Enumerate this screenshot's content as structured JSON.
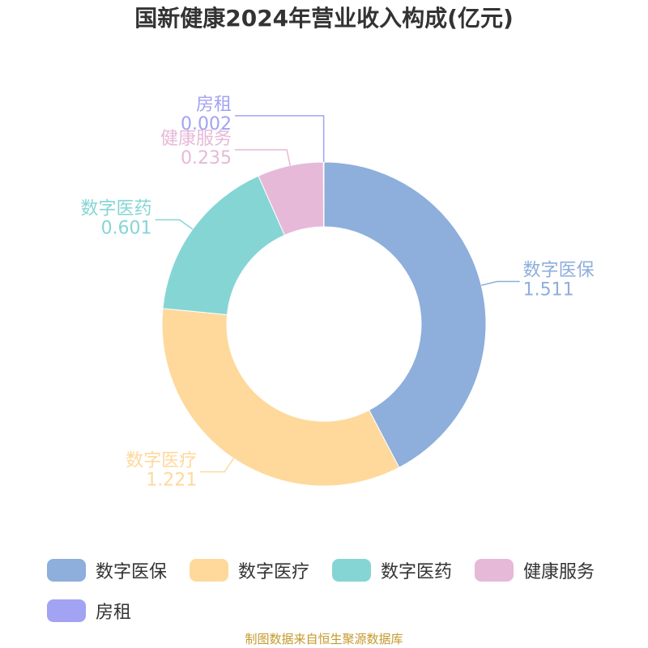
{
  "chart_data": {
    "type": "pie",
    "title": "国新健康2024年营业收入构成(亿元)",
    "categories": [
      "数字医保",
      "数字医疗",
      "数字医药",
      "健康服务",
      "房租"
    ],
    "values": [
      1.511,
      1.221,
      0.601,
      0.235,
      0.002
    ],
    "colors": [
      "#8eaedb",
      "#fed99b",
      "#86d5d5",
      "#e6b9d9",
      "#a2a3f3"
    ],
    "source": "制图数据来自恒生聚源数据库"
  }
}
